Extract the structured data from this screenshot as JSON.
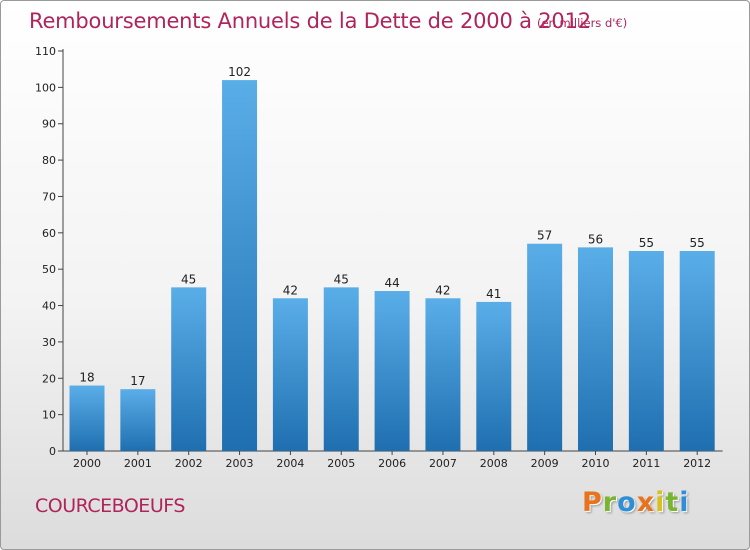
{
  "chart_data": {
    "type": "bar",
    "title": "Remboursements Annuels de la Dette de 2000 à 2012",
    "unit_note": "(en milliers d'€)",
    "categories": [
      "2000",
      "2001",
      "2002",
      "2003",
      "2004",
      "2005",
      "2006",
      "2007",
      "2008",
      "2009",
      "2010",
      "2011",
      "2012"
    ],
    "values": [
      18,
      17,
      45,
      102,
      42,
      45,
      44,
      42,
      41,
      57,
      56,
      55,
      55
    ],
    "ylim": [
      0,
      110
    ],
    "yticks": [
      0,
      10,
      20,
      30,
      40,
      50,
      60,
      70,
      80,
      90,
      100,
      110
    ],
    "grid": false,
    "bar_color_top": "#5aaee8",
    "bar_color_bottom": "#1f6fb0"
  },
  "commune": "COURCEBOEUFS",
  "logo": {
    "letters": [
      "P",
      "r",
      "o",
      "x",
      "i",
      "t",
      "i"
    ],
    "colors": [
      "#e8731c",
      "#79b531",
      "#2e8ed6",
      "#e8731c",
      "#d8c021",
      "#79b531",
      "#2e8ed6"
    ]
  }
}
